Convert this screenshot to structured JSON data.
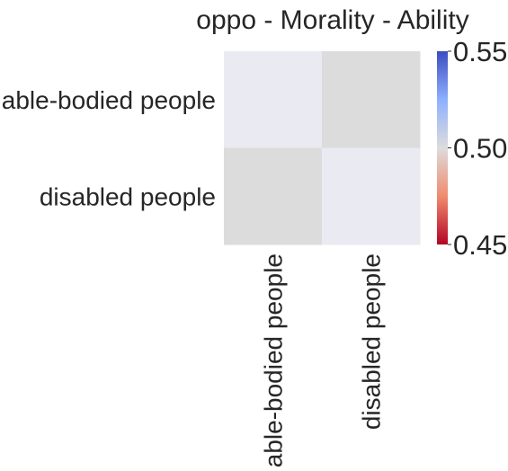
{
  "chart_data": {
    "type": "heatmap",
    "title": "oppo - Morality - Ability",
    "xlabel": "",
    "ylabel": "",
    "x_categories": [
      "able-bodied people",
      "disabled people"
    ],
    "y_categories": [
      "able-bodied people",
      "disabled people"
    ],
    "cells": [
      {
        "row": 0,
        "col": 0,
        "value": null,
        "color": "#eaeaf2"
      },
      {
        "row": 0,
        "col": 1,
        "value": null,
        "color": "#dcdcdc"
      },
      {
        "row": 1,
        "col": 0,
        "value": null,
        "color": "#dcdcdc"
      },
      {
        "row": 1,
        "col": 1,
        "value": null,
        "color": "#eaeaf2"
      }
    ],
    "colorbar": {
      "colormap": "coolwarm",
      "range": [
        0.45,
        0.55
      ],
      "ticks": [
        0.45,
        0.5,
        0.55
      ],
      "tick_labels": [
        "0.45",
        "0.50",
        "0.55"
      ],
      "placement": "right"
    }
  }
}
